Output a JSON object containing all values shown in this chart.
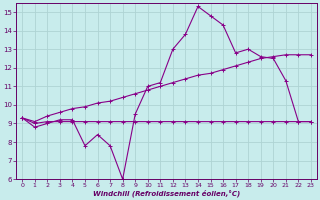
{
  "xlabel": "Windchill (Refroidissement éolien,°C)",
  "background_color": "#c8ecec",
  "grid_color": "#aed4d4",
  "line_color": "#880088",
  "x": [
    0,
    1,
    2,
    3,
    4,
    5,
    6,
    7,
    8,
    9,
    10,
    11,
    12,
    13,
    14,
    15,
    16,
    17,
    18,
    19,
    20,
    21,
    22,
    23
  ],
  "y_main": [
    9.3,
    8.8,
    9.0,
    9.2,
    9.2,
    7.8,
    8.4,
    7.8,
    6.0,
    9.5,
    11.0,
    11.2,
    13.0,
    13.8,
    15.3,
    14.8,
    14.3,
    12.8,
    13.0,
    12.6,
    12.5,
    11.3,
    9.1,
    9.1
  ],
  "y_upper": [
    9.3,
    9.1,
    9.4,
    9.6,
    9.8,
    9.9,
    10.1,
    10.2,
    10.4,
    10.6,
    10.8,
    11.0,
    11.2,
    11.4,
    11.6,
    11.7,
    11.9,
    12.1,
    12.3,
    12.5,
    12.6,
    12.7,
    12.7,
    12.7
  ],
  "y_lower": [
    9.3,
    9.0,
    9.1,
    9.1,
    9.1,
    9.1,
    9.1,
    9.1,
    9.1,
    9.1,
    9.1,
    9.1,
    9.1,
    9.1,
    9.1,
    9.1,
    9.1,
    9.1,
    9.1,
    9.1,
    9.1,
    9.1,
    9.1,
    9.1
  ],
  "ylim": [
    6,
    15.5
  ],
  "yticks": [
    6,
    7,
    8,
    9,
    10,
    11,
    12,
    13,
    14,
    15
  ],
  "xlim": [
    -0.5,
    23.5
  ],
  "xticks": [
    0,
    1,
    2,
    3,
    4,
    5,
    6,
    7,
    8,
    9,
    10,
    11,
    12,
    13,
    14,
    15,
    16,
    17,
    18,
    19,
    20,
    21,
    22,
    23
  ]
}
